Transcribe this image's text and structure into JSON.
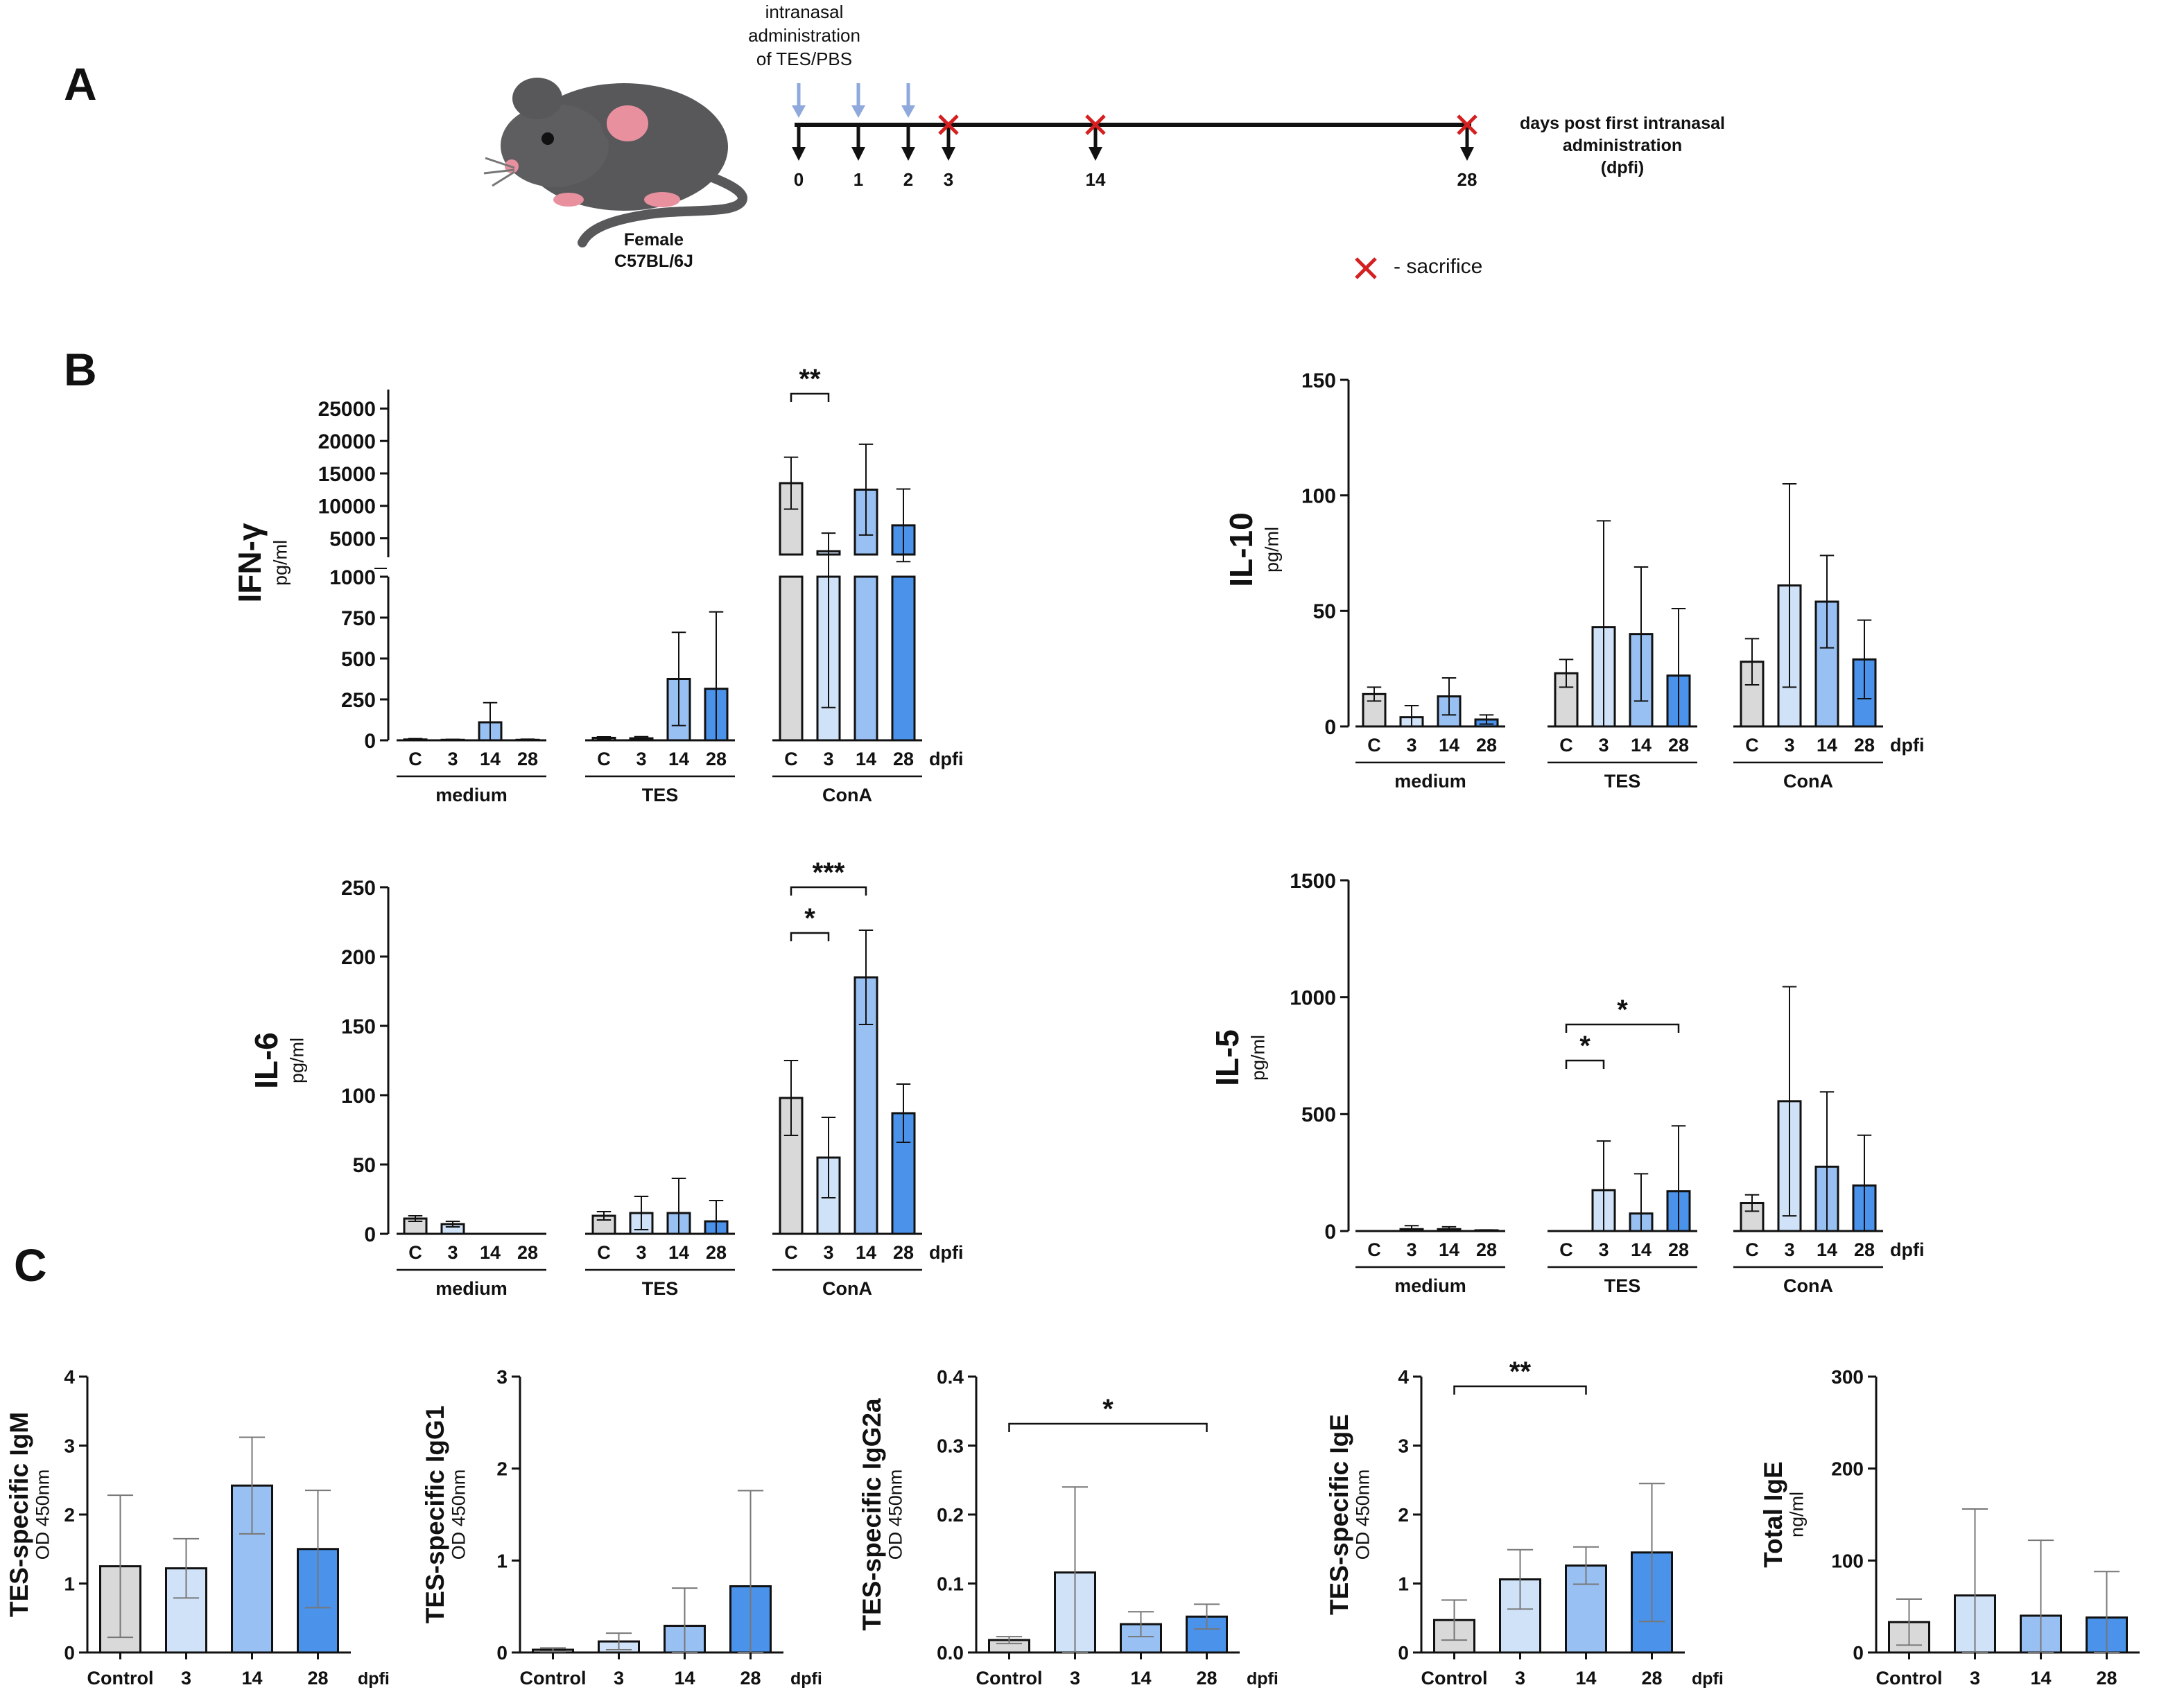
{
  "panel_labels": {
    "a": "A",
    "b": "B",
    "c": "C"
  },
  "timeline": {
    "admin_label": [
      "intranasal",
      "administration",
      "of TES/PBS"
    ],
    "days": [
      "0",
      "1",
      "2",
      "3",
      "14",
      "28"
    ],
    "axis_title": [
      "days post first intranasal",
      "administration",
      "(dpfi)"
    ],
    "mouse_label": [
      "Female",
      "C57BL/6J"
    ],
    "sacrifice_legend": "- sacrifice",
    "colors": {
      "admin_arrow": "#8fa9dc",
      "sacrifice": "#d42020",
      "mouse_body": "#58585a",
      "mouse_ear": "#e8909e"
    }
  },
  "colors": {
    "c": "#d9d9d9",
    "d3": "#cfe2f8",
    "d14": "#98c0f2",
    "d28": "#4a92ea",
    "axis": "#111111"
  },
  "chart_data": [
    {
      "id": "ifng",
      "type": "bar",
      "title": "IFN-γ",
      "ylabel": "pg/ml",
      "axis_break": true,
      "lower_ylim": [
        0,
        1000
      ],
      "lower_ticks": [
        "0",
        "250",
        "500",
        "750",
        "1000"
      ],
      "upper_ylim": [
        2500,
        27500
      ],
      "upper_ticks": [
        "5000",
        "10000",
        "15000",
        "20000",
        "25000"
      ],
      "groups": [
        "medium",
        "TES",
        "ConA"
      ],
      "categories": [
        "C",
        "3",
        "14",
        "28"
      ],
      "xunit": "dpfi",
      "values": [
        [
          5,
          3,
          110,
          3
        ],
        [
          15,
          12,
          375,
          315
        ],
        [
          13500,
          3000,
          12500,
          7000
        ]
      ],
      "errors": [
        [
          5,
          3,
          120,
          4
        ],
        [
          6,
          10,
          285,
          470
        ],
        [
          4000,
          2800,
          7000,
          5600
        ]
      ],
      "significance": [
        {
          "group": 2,
          "from": 0,
          "to": 1,
          "label": "**"
        }
      ]
    },
    {
      "id": "il10",
      "type": "bar",
      "title": "IL-10",
      "ylabel": "pg/ml",
      "ylim": [
        0,
        150
      ],
      "ticks": [
        "0",
        "50",
        "100",
        "150"
      ],
      "groups": [
        "medium",
        "TES",
        "ConA"
      ],
      "categories": [
        "C",
        "3",
        "14",
        "28"
      ],
      "xunit": "dpfi",
      "values": [
        [
          14,
          4,
          13,
          3
        ],
        [
          23,
          43,
          40,
          22
        ],
        [
          28,
          61,
          54,
          29
        ]
      ],
      "errors": [
        [
          3,
          5,
          8,
          2
        ],
        [
          6,
          46,
          29,
          29
        ],
        [
          10,
          44,
          20,
          17
        ]
      ],
      "significance": []
    },
    {
      "id": "il6",
      "type": "bar",
      "title": "IL-6",
      "ylabel": "pg/ml",
      "ylim": [
        0,
        250
      ],
      "ticks": [
        "0",
        "50",
        "100",
        "150",
        "200",
        "250"
      ],
      "groups": [
        "medium",
        "TES",
        "ConA"
      ],
      "categories": [
        "C",
        "3",
        "14",
        "28"
      ],
      "xunit": "dpfi",
      "values": [
        [
          11,
          7,
          0,
          0
        ],
        [
          13,
          15,
          15,
          9
        ],
        [
          98,
          55,
          185,
          87
        ]
      ],
      "errors": [
        [
          2,
          2,
          0,
          0
        ],
        [
          3,
          12,
          25,
          15
        ],
        [
          27,
          29,
          34,
          21
        ]
      ],
      "significance": [
        {
          "group": 2,
          "from": 0,
          "to": 1,
          "label": "*"
        },
        {
          "group": 2,
          "from": 0,
          "to": 2,
          "label": "***"
        }
      ]
    },
    {
      "id": "il5",
      "type": "bar",
      "title": "IL-5",
      "ylabel": "pg/ml",
      "ylim": [
        0,
        1500
      ],
      "ticks": [
        "0",
        "500",
        "1000",
        "1500"
      ],
      "groups": [
        "medium",
        "TES",
        "ConA"
      ],
      "categories": [
        "C",
        "3",
        "14",
        "28"
      ],
      "xunit": "dpfi",
      "values": [
        [
          0,
          8,
          8,
          3
        ],
        [
          0,
          175,
          75,
          170
        ],
        [
          120,
          555,
          275,
          195
        ]
      ],
      "errors": [
        [
          0,
          15,
          10,
          2
        ],
        [
          0,
          210,
          170,
          280
        ],
        [
          35,
          490,
          320,
          215
        ]
      ],
      "significance": [
        {
          "group": 1,
          "from": 0,
          "to": 1,
          "label": "*"
        },
        {
          "group": 1,
          "from": 0,
          "to": 3,
          "label": "*"
        }
      ]
    },
    {
      "id": "igm",
      "type": "bar",
      "title": "TES-specific IgM",
      "ylabel": "OD 450nm",
      "ylim": [
        0,
        4
      ],
      "ticks": [
        "0",
        "1",
        "2",
        "3",
        "4"
      ],
      "categories": [
        "Control",
        "3",
        "14",
        "28"
      ],
      "xunit": "dpfi",
      "values": [
        1.25,
        1.22,
        2.42,
        1.5
      ],
      "errors": [
        1.03,
        0.43,
        0.7,
        0.85
      ],
      "significance": []
    },
    {
      "id": "igg1",
      "type": "bar",
      "title": "TES-specific IgG1",
      "ylabel": "OD 450nm",
      "ylim": [
        0,
        3
      ],
      "ticks": [
        "0",
        "1",
        "2",
        "3"
      ],
      "categories": [
        "Control",
        "3",
        "14",
        "28"
      ],
      "xunit": "dpfi",
      "values": [
        0.03,
        0.12,
        0.29,
        0.72
      ],
      "errors": [
        0.02,
        0.09,
        0.41,
        1.04
      ],
      "significance": []
    },
    {
      "id": "igg2a",
      "type": "bar",
      "title": "TES-specific IgG2a",
      "ylabel": "OD 450nm",
      "ylim": [
        0,
        0.4
      ],
      "ticks": [
        "0.0",
        "0.1",
        "0.2",
        "0.3",
        "0.4"
      ],
      "categories": [
        "Control",
        "3",
        "14",
        "28"
      ],
      "xunit": "dpfi",
      "values": [
        0.018,
        0.116,
        0.041,
        0.052
      ],
      "errors": [
        0.005,
        0.124,
        0.018,
        0.018
      ],
      "significance": [
        {
          "from": 0,
          "to": 3,
          "label": "*"
        }
      ]
    },
    {
      "id": "ige",
      "type": "bar",
      "title": "TES-specific IgE",
      "ylabel": "OD 450nm",
      "ylim": [
        0,
        4
      ],
      "ticks": [
        "0",
        "1",
        "2",
        "3",
        "4"
      ],
      "categories": [
        "Control",
        "3",
        "14",
        "28"
      ],
      "xunit": "dpfi",
      "values": [
        0.47,
        1.06,
        1.26,
        1.45
      ],
      "errors": [
        0.29,
        0.43,
        0.27,
        1.0
      ],
      "significance": [
        {
          "from": 0,
          "to": 2,
          "label": "**"
        }
      ]
    },
    {
      "id": "totalige",
      "type": "bar",
      "title": "Total IgE",
      "ylabel": "ng/ml",
      "ylim": [
        0,
        300
      ],
      "ticks": [
        "0",
        "100",
        "200",
        "300"
      ],
      "categories": [
        "Control",
        "3",
        "14",
        "28"
      ],
      "xunit": "",
      "values": [
        33,
        62,
        40,
        38
      ],
      "errors": [
        25,
        94,
        82,
        50
      ],
      "significance": []
    }
  ]
}
